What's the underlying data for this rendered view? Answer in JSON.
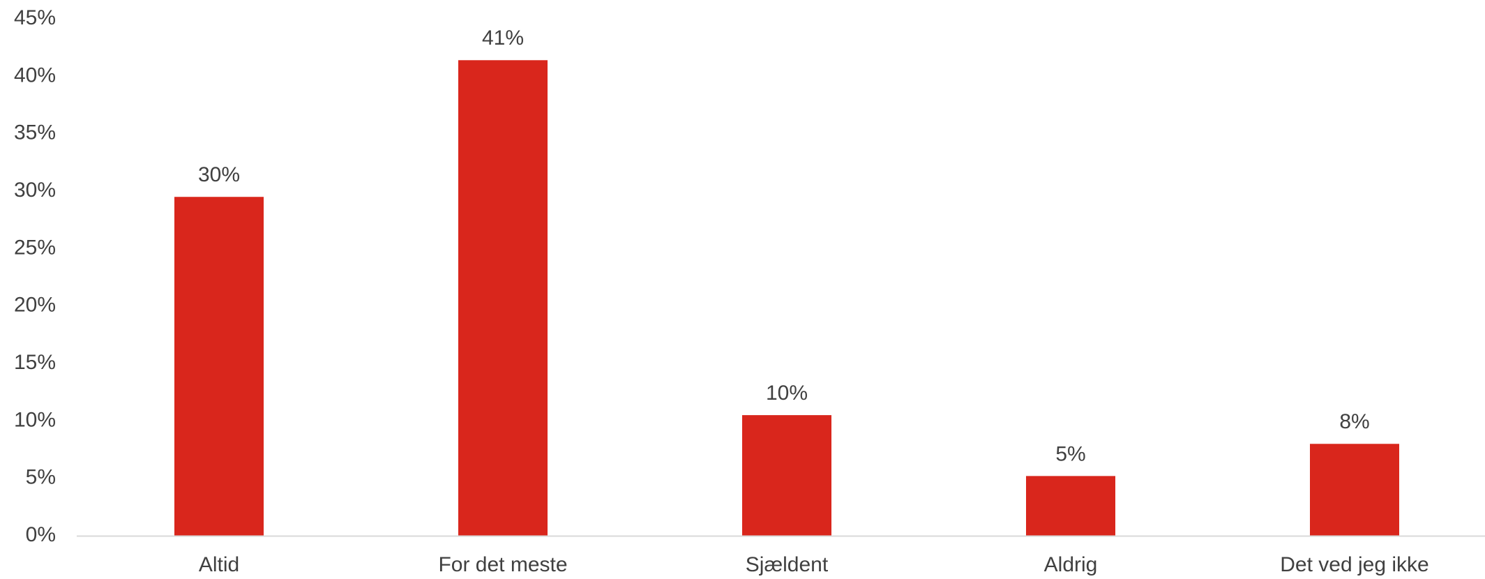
{
  "chart_data": {
    "type": "bar",
    "title": "",
    "xlabel": "",
    "ylabel": "",
    "categories": [
      "Altid",
      "For det meste",
      "Sjældent",
      "Aldrig",
      "Det ved jeg ikke"
    ],
    "values": [
      29.5,
      41.4,
      10.5,
      5.2,
      8.0
    ],
    "data_labels": [
      "30%",
      "41%",
      "10%",
      "5%",
      "8%"
    ],
    "ylim": [
      0,
      45
    ],
    "y_ticks": [
      0,
      5,
      10,
      15,
      20,
      25,
      30,
      35,
      40,
      45
    ],
    "y_tick_labels": [
      "0%",
      "5%",
      "10%",
      "15%",
      "20%",
      "25%",
      "30%",
      "35%",
      "40%",
      "45%"
    ],
    "grid": false,
    "legend": "none",
    "bar_color": "#D9261C",
    "axis_color": "#D9D9D9",
    "text_color": "#404040"
  }
}
